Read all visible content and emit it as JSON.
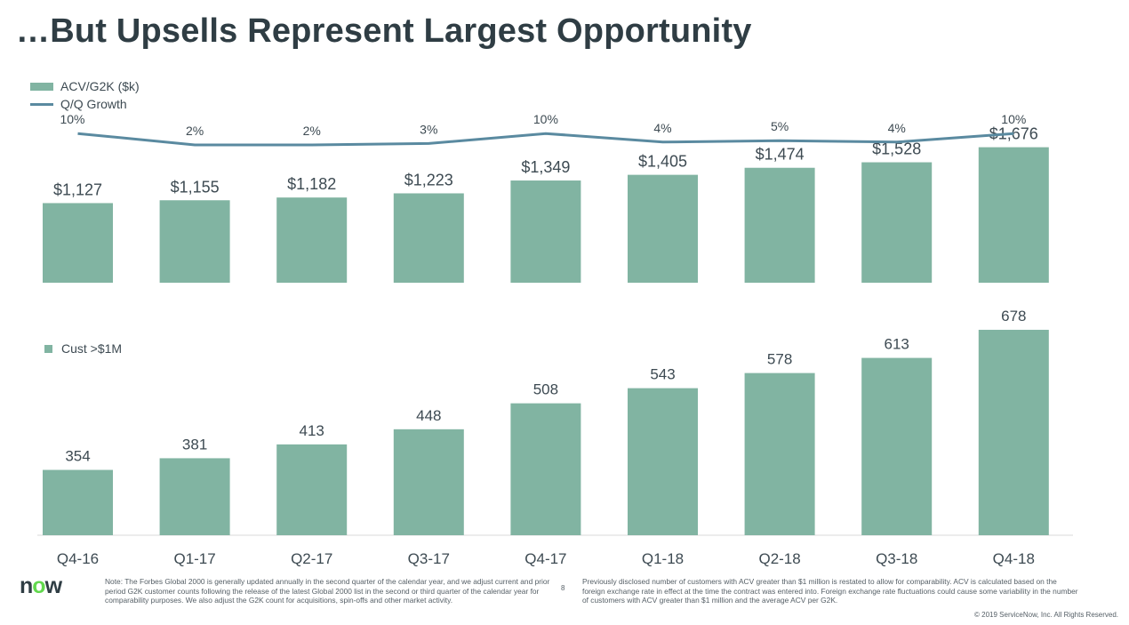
{
  "title": "…But Upsells Represent Largest Opportunity",
  "colors": {
    "bar": "#81b4a2",
    "line": "#5a8aa0",
    "text": "#3d4a52",
    "axis": "#d9d9d9"
  },
  "chart_data": [
    {
      "type": "bar+line",
      "categories": [
        "Q4-16",
        "Q1-17",
        "Q2-17",
        "Q3-17",
        "Q4-17",
        "Q1-18",
        "Q2-18",
        "Q3-18",
        "Q4-18"
      ],
      "series": [
        {
          "name": "ACV/G2K ($k)",
          "type": "bar",
          "values": [
            1127,
            1155,
            1182,
            1223,
            1349,
            1405,
            1474,
            1528,
            1676
          ],
          "labels": [
            "$1,127",
            "$1,155",
            "$1,182",
            "$1,223",
            "$1,349",
            "$1,405",
            "$1,474",
            "$1,528",
            "$1,676"
          ]
        },
        {
          "name": "Q/Q Growth",
          "type": "line",
          "values": [
            10,
            2,
            2,
            3,
            10,
            4,
            5,
            4,
            10
          ],
          "labels": [
            "10%",
            "2%",
            "2%",
            "3%",
            "10%",
            "4%",
            "5%",
            "4%",
            "10%"
          ]
        }
      ],
      "legend_position": "top-left",
      "grid": false
    },
    {
      "type": "bar",
      "categories": [
        "Q4-16",
        "Q1-17",
        "Q2-17",
        "Q3-17",
        "Q4-17",
        "Q1-18",
        "Q2-18",
        "Q3-18",
        "Q4-18"
      ],
      "series": [
        {
          "name": "Cust >$1M",
          "values": [
            354,
            381,
            413,
            448,
            508,
            543,
            578,
            613,
            678
          ],
          "labels": [
            "354",
            "381",
            "413",
            "448",
            "508",
            "543",
            "578",
            "613",
            "678"
          ]
        }
      ],
      "legend_position": "top-left",
      "grid": false
    }
  ],
  "footer": {
    "note_left": "Note: The Forbes Global 2000 is generally updated annually in the second quarter of the calendar year, and we adjust current and prior period G2K customer counts following the release of the latest Global 2000 list in the second or third quarter of the calendar year for comparability purposes. We also adjust the G2K count for acquisitions, spin-offs and other market activity.",
    "page_number": "8",
    "note_right": "Previously disclosed number of customers with ACV greater than $1 million is restated to allow for comparability. ACV is calculated based on the foreign exchange rate in effect at the time the contract was entered into. Foreign exchange rate fluctuations could cause some variability in the number of customers with ACV greater than $1 million and the average ACV per G2K.",
    "copyright": "© 2019 ServiceNow, Inc. All Rights Reserved.",
    "logo_text": {
      "pre": "n",
      "o": "o",
      "post": "w"
    }
  }
}
